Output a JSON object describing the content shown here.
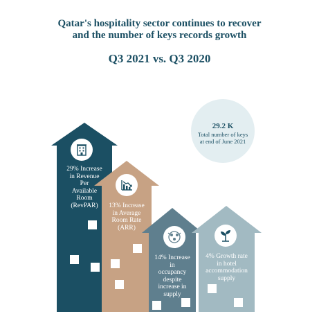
{
  "title": {
    "line1": "Qatar's hospitality sector continues to recover",
    "line2": "and the number of keys records growth",
    "subtitle": "Q3 2021 vs. Q3 2020"
  },
  "keys": {
    "value": "29.2 K",
    "line1": "Total number of keys",
    "line2": "at end of June 2021"
  },
  "houses": [
    {
      "icon": "hotel-building-icon",
      "color": "#1b4f63",
      "lines": [
        "29% Increase",
        "in Revenue",
        "Per",
        "Available",
        "Room",
        "(RevPAR)"
      ]
    },
    {
      "icon": "declining-chart-icon",
      "color": "#c7a284",
      "lines": [
        "13% Increase",
        "in Average",
        "Room Rate",
        "(ARR)"
      ]
    },
    {
      "icon": "occupancy-people-icon",
      "color": "#5f7f8e",
      "lines": [
        "14% Increase",
        "in",
        "occupancy",
        "despite",
        "increase in",
        "supply"
      ]
    },
    {
      "icon": "growth-plant-icon",
      "color": "#a2bac2",
      "lines": [
        "4% Growth rate",
        "in hotel",
        "accommodation",
        "supply"
      ]
    }
  ]
}
